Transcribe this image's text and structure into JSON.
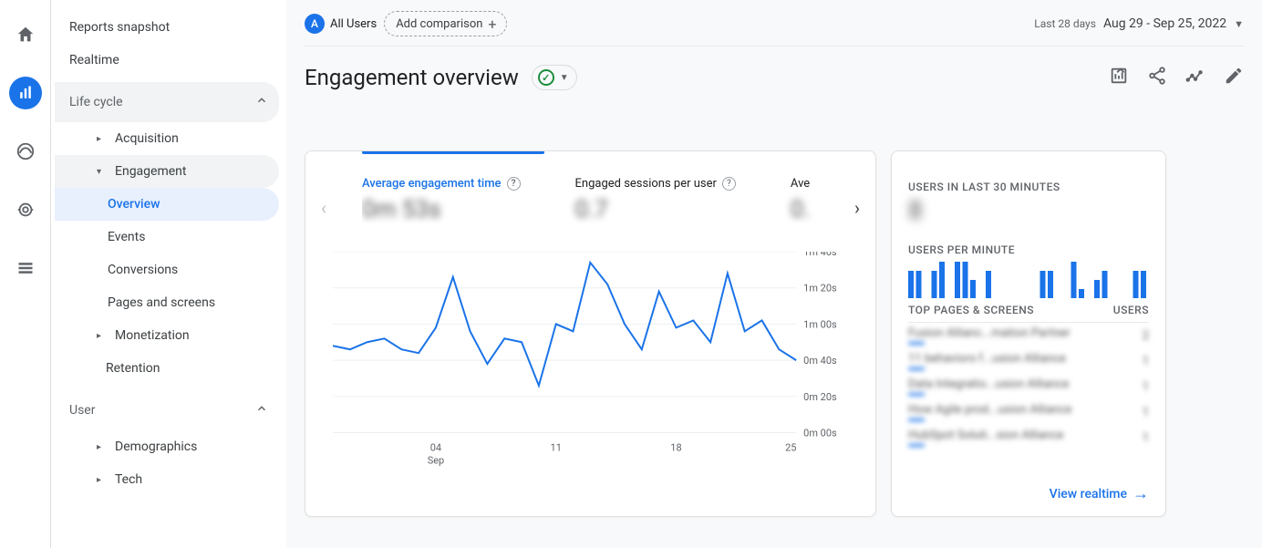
{
  "rail": {
    "items": [
      "home",
      "reports",
      "advertising",
      "explore",
      "configure"
    ],
    "active": "reports"
  },
  "sidebar": {
    "top": [
      {
        "label": "Reports snapshot"
      },
      {
        "label": "Realtime"
      }
    ],
    "section1": {
      "label": "Life cycle"
    },
    "lifecycle": {
      "items": [
        "Acquisition",
        "Engagement",
        "Monetization",
        "Retention"
      ],
      "engagement_children": [
        "Overview",
        "Events",
        "Conversions",
        "Pages and screens"
      ],
      "selected": "Overview"
    },
    "section2": {
      "label": "User"
    },
    "user": [
      "Demographics",
      "Tech"
    ]
  },
  "comparison": {
    "all_users_badge": "A",
    "all_users_label": "All Users",
    "add_label": "Add comparison"
  },
  "date": {
    "prefix": "Last 28 days",
    "range": "Aug 29 - Sep 25, 2022"
  },
  "title": "Engagement overview",
  "metrics": [
    {
      "label": "Average engagement time",
      "value": "0m 53s",
      "active": true
    },
    {
      "label": "Engaged sessions per user",
      "value": "0.7",
      "active": false
    },
    {
      "label": "Ave",
      "value": "0.",
      "active": false
    }
  ],
  "chart": {
    "y_labels": [
      "1m 40s",
      "1m 20s",
      "1m 00s",
      "0m 40s",
      "0m 20s",
      "0m 00s"
    ],
    "x_labels": [
      "04",
      "11",
      "18",
      "25"
    ],
    "x_sublabel": "Sep",
    "line_color": "#1a73e8",
    "grid_color": "#eceff1",
    "points_sec": [
      48,
      46,
      50,
      52,
      46,
      44,
      58,
      86,
      56,
      38,
      52,
      50,
      26,
      60,
      56,
      94,
      82,
      60,
      46,
      78,
      58,
      62,
      50,
      88,
      56,
      62,
      46,
      40
    ],
    "y_max_sec": 100
  },
  "realtime": {
    "h1": "USERS IN LAST 30 MINUTES",
    "big": "8",
    "h2": "USERS PER MINUTE",
    "bars": [
      3,
      3,
      0,
      3,
      4,
      0,
      4,
      4,
      2,
      0,
      3,
      0,
      0,
      0,
      0,
      0,
      0,
      3,
      3,
      0,
      0,
      4,
      1,
      0,
      2,
      3,
      0,
      0,
      0,
      3,
      3
    ],
    "bar_max": 4,
    "table_head_left": "TOP PAGES & SCREENS",
    "table_head_right": "USERS",
    "rows": [
      {
        "page": "Fusion Allianc...mation Partner",
        "users": "2"
      },
      {
        "page": "11 behaviors f...usion Alliance",
        "users": "1"
      },
      {
        "page": "Data Integratio...usion Alliance",
        "users": "1"
      },
      {
        "page": "How Agile prod...usion Alliance",
        "users": "1"
      },
      {
        "page": "HubSpot Soluti...sion Alliance",
        "users": "1"
      }
    ],
    "link": "View realtime"
  }
}
